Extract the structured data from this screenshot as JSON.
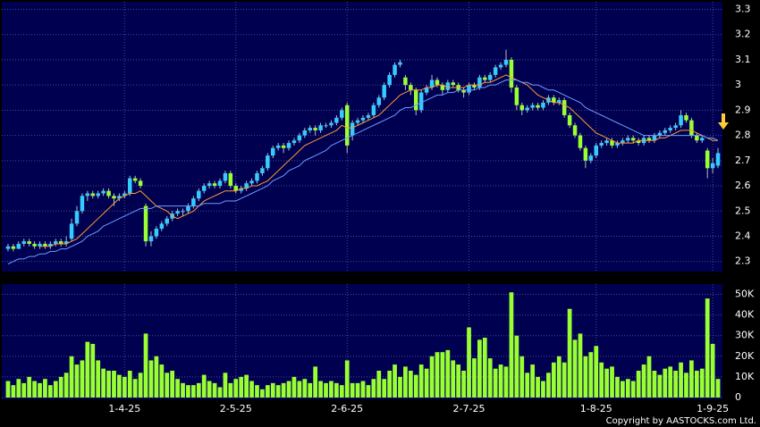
{
  "chart_data": {
    "type": "candlestick",
    "categories": [
      null,
      null,
      null,
      null,
      null,
      null,
      null,
      null,
      null,
      null,
      null,
      null,
      null,
      null,
      null,
      null,
      null,
      null,
      null,
      null,
      null,
      null,
      "1-4-25",
      null,
      null,
      null,
      null,
      null,
      null,
      null,
      null,
      null,
      null,
      null,
      null,
      null,
      null,
      null,
      null,
      null,
      null,
      null,
      null,
      "2-5-25",
      null,
      null,
      null,
      null,
      null,
      null,
      null,
      null,
      null,
      null,
      null,
      null,
      null,
      null,
      null,
      null,
      null,
      null,
      null,
      null,
      "2-6-25",
      null,
      null,
      null,
      null,
      null,
      null,
      null,
      null,
      null,
      null,
      null,
      null,
      null,
      null,
      null,
      null,
      null,
      null,
      null,
      null,
      null,
      null,
      "2-7-25",
      null,
      null,
      null,
      null,
      null,
      null,
      null,
      null,
      null,
      null,
      null,
      null,
      null,
      null,
      null,
      null,
      null,
      null,
      null,
      null,
      null,
      null,
      null,
      "1-8-25",
      null,
      null,
      null,
      null,
      null,
      null,
      null,
      null,
      null,
      null,
      null,
      null,
      null,
      null,
      null,
      null,
      null,
      null,
      null,
      null,
      null,
      "1-9-25",
      null
    ],
    "ohlc": [
      [
        2.35,
        2.37,
        2.34,
        2.36
      ],
      [
        2.36,
        2.37,
        2.34,
        2.35
      ],
      [
        2.35,
        2.38,
        2.35,
        2.37
      ],
      [
        2.37,
        2.39,
        2.36,
        2.38
      ],
      [
        2.38,
        2.39,
        2.36,
        2.37
      ],
      [
        2.37,
        2.38,
        2.35,
        2.36
      ],
      [
        2.36,
        2.38,
        2.35,
        2.37
      ],
      [
        2.37,
        2.38,
        2.35,
        2.36
      ],
      [
        2.36,
        2.38,
        2.35,
        2.37
      ],
      [
        2.37,
        2.39,
        2.36,
        2.38
      ],
      [
        2.38,
        2.39,
        2.36,
        2.37
      ],
      [
        2.37,
        2.4,
        2.36,
        2.38
      ],
      [
        2.39,
        2.47,
        2.38,
        2.45
      ],
      [
        2.45,
        2.52,
        2.44,
        2.5
      ],
      [
        2.5,
        2.57,
        2.49,
        2.56
      ],
      [
        2.56,
        2.58,
        2.54,
        2.57
      ],
      [
        2.57,
        2.58,
        2.55,
        2.56
      ],
      [
        2.56,
        2.58,
        2.55,
        2.57
      ],
      [
        2.57,
        2.59,
        2.56,
        2.58
      ],
      [
        2.58,
        2.59,
        2.55,
        2.56
      ],
      [
        2.56,
        2.57,
        2.52,
        2.55
      ],
      [
        2.55,
        2.57,
        2.54,
        2.56
      ],
      [
        2.56,
        2.58,
        2.55,
        2.57
      ],
      [
        2.57,
        2.64,
        2.56,
        2.63
      ],
      [
        2.63,
        2.64,
        2.61,
        2.62
      ],
      [
        2.62,
        2.63,
        2.59,
        2.6
      ],
      [
        2.52,
        2.53,
        2.36,
        2.38
      ],
      [
        2.38,
        2.42,
        2.36,
        2.4
      ],
      [
        2.4,
        2.44,
        2.39,
        2.43
      ],
      [
        2.43,
        2.46,
        2.42,
        2.45
      ],
      [
        2.45,
        2.48,
        2.44,
        2.47
      ],
      [
        2.47,
        2.5,
        2.46,
        2.49
      ],
      [
        2.49,
        2.51,
        2.48,
        2.5
      ],
      [
        2.5,
        2.51,
        2.48,
        2.5
      ],
      [
        2.5,
        2.53,
        2.49,
        2.52
      ],
      [
        2.52,
        2.56,
        2.51,
        2.55
      ],
      [
        2.55,
        2.59,
        2.54,
        2.58
      ],
      [
        2.58,
        2.61,
        2.57,
        2.6
      ],
      [
        2.6,
        2.62,
        2.59,
        2.61
      ],
      [
        2.61,
        2.62,
        2.59,
        2.6
      ],
      [
        2.6,
        2.63,
        2.59,
        2.62
      ],
      [
        2.62,
        2.66,
        2.61,
        2.65
      ],
      [
        2.65,
        2.66,
        2.59,
        2.6
      ],
      [
        2.6,
        2.61,
        2.57,
        2.58
      ],
      [
        2.58,
        2.6,
        2.57,
        2.59
      ],
      [
        2.59,
        2.62,
        2.58,
        2.61
      ],
      [
        2.61,
        2.63,
        2.6,
        2.62
      ],
      [
        2.62,
        2.66,
        2.61,
        2.65
      ],
      [
        2.65,
        2.68,
        2.64,
        2.67
      ],
      [
        2.67,
        2.73,
        2.66,
        2.72
      ],
      [
        2.72,
        2.76,
        2.71,
        2.75
      ],
      [
        2.75,
        2.77,
        2.74,
        2.76
      ],
      [
        2.76,
        2.77,
        2.73,
        2.75
      ],
      [
        2.75,
        2.78,
        2.74,
        2.77
      ],
      [
        2.77,
        2.79,
        2.76,
        2.78
      ],
      [
        2.78,
        2.81,
        2.77,
        2.8
      ],
      [
        2.8,
        2.83,
        2.79,
        2.82
      ],
      [
        2.82,
        2.84,
        2.81,
        2.83
      ],
      [
        2.83,
        2.84,
        2.8,
        2.82
      ],
      [
        2.82,
        2.85,
        2.81,
        2.84
      ],
      [
        2.84,
        2.85,
        2.83,
        2.84
      ],
      [
        2.84,
        2.86,
        2.83,
        2.85
      ],
      [
        2.85,
        2.88,
        2.84,
        2.87
      ],
      [
        2.87,
        2.91,
        2.86,
        2.9
      ],
      [
        2.92,
        2.93,
        2.73,
        2.76
      ],
      [
        2.8,
        2.86,
        2.78,
        2.85
      ],
      [
        2.85,
        2.87,
        2.84,
        2.86
      ],
      [
        2.86,
        2.88,
        2.85,
        2.87
      ],
      [
        2.87,
        2.89,
        2.86,
        2.88
      ],
      [
        2.88,
        2.93,
        2.87,
        2.92
      ],
      [
        2.92,
        2.96,
        2.91,
        2.95
      ],
      [
        2.95,
        3.01,
        2.94,
        3.0
      ],
      [
        3.0,
        3.05,
        2.99,
        3.04
      ],
      [
        3.04,
        3.09,
        3.03,
        3.08
      ],
      [
        3.08,
        3.1,
        3.07,
        3.09
      ],
      [
        3.03,
        3.04,
        2.98,
        3.0
      ],
      [
        3.0,
        3.01,
        2.96,
        2.98
      ],
      [
        2.98,
        2.99,
        2.88,
        2.9
      ],
      [
        2.9,
        2.98,
        2.89,
        2.97
      ],
      [
        2.97,
        3.0,
        2.96,
        2.99
      ],
      [
        2.99,
        3.04,
        2.98,
        3.02
      ],
      [
        3.02,
        3.03,
        2.99,
        3.0
      ],
      [
        3.0,
        3.01,
        2.96,
        2.98
      ],
      [
        2.98,
        3.02,
        2.97,
        3.01
      ],
      [
        3.01,
        3.02,
        2.99,
        3.0
      ],
      [
        3.0,
        3.01,
        2.97,
        2.98
      ],
      [
        2.98,
        2.99,
        2.95,
        2.97
      ],
      [
        2.97,
        3.01,
        2.96,
        3.0
      ],
      [
        3.0,
        3.01,
        2.98,
        2.99
      ],
      [
        2.99,
        3.04,
        2.98,
        3.03
      ],
      [
        3.03,
        3.04,
        3.01,
        3.02
      ],
      [
        3.02,
        3.05,
        3.01,
        3.04
      ],
      [
        3.04,
        3.08,
        3.03,
        3.07
      ],
      [
        3.07,
        3.09,
        3.06,
        3.08
      ],
      [
        3.08,
        3.14,
        3.07,
        3.1
      ],
      [
        3.1,
        3.11,
        2.97,
        2.99
      ],
      [
        2.99,
        3.0,
        2.9,
        2.92
      ],
      [
        2.92,
        2.93,
        2.88,
        2.9
      ],
      [
        2.9,
        2.92,
        2.89,
        2.91
      ],
      [
        2.91,
        2.93,
        2.9,
        2.92
      ],
      [
        2.92,
        2.93,
        2.9,
        2.91
      ],
      [
        2.91,
        2.94,
        2.9,
        2.93
      ],
      [
        2.93,
        2.96,
        2.92,
        2.95
      ],
      [
        2.95,
        2.96,
        2.92,
        2.93
      ],
      [
        2.93,
        2.95,
        2.92,
        2.94
      ],
      [
        2.94,
        2.95,
        2.87,
        2.88
      ],
      [
        2.88,
        2.89,
        2.83,
        2.84
      ],
      [
        2.84,
        2.85,
        2.79,
        2.8
      ],
      [
        2.8,
        2.81,
        2.74,
        2.75
      ],
      [
        2.75,
        2.76,
        2.67,
        2.7
      ],
      [
        2.7,
        2.73,
        2.69,
        2.72
      ],
      [
        2.72,
        2.77,
        2.71,
        2.76
      ],
      [
        2.76,
        2.78,
        2.75,
        2.77
      ],
      [
        2.77,
        2.79,
        2.76,
        2.78
      ],
      [
        2.78,
        2.79,
        2.75,
        2.76
      ],
      [
        2.76,
        2.78,
        2.75,
        2.77
      ],
      [
        2.77,
        2.79,
        2.76,
        2.78
      ],
      [
        2.78,
        2.8,
        2.77,
        2.79
      ],
      [
        2.79,
        2.8,
        2.77,
        2.78
      ],
      [
        2.78,
        2.79,
        2.76,
        2.77
      ],
      [
        2.77,
        2.8,
        2.76,
        2.79
      ],
      [
        2.79,
        2.8,
        2.77,
        2.78
      ],
      [
        2.78,
        2.81,
        2.77,
        2.8
      ],
      [
        2.8,
        2.82,
        2.79,
        2.81
      ],
      [
        2.81,
        2.83,
        2.8,
        2.82
      ],
      [
        2.82,
        2.84,
        2.81,
        2.83
      ],
      [
        2.83,
        2.85,
        2.82,
        2.84
      ],
      [
        2.84,
        2.9,
        2.83,
        2.88
      ],
      [
        2.88,
        2.89,
        2.85,
        2.86
      ],
      [
        2.86,
        2.87,
        2.79,
        2.8
      ],
      [
        2.8,
        2.81,
        2.77,
        2.78
      ],
      [
        2.78,
        2.8,
        2.77,
        2.79
      ],
      [
        2.74,
        2.75,
        2.63,
        2.67
      ],
      [
        2.67,
        2.71,
        2.65,
        2.69
      ],
      [
        2.68,
        2.75,
        2.67,
        2.73
      ]
    ],
    "up_color": "#33ccff",
    "down_color": "#99ff33",
    "series": [
      {
        "color": "#ff9933",
        "values": [
          null,
          null,
          null,
          null,
          null,
          null,
          2.36,
          2.36,
          2.36,
          2.37,
          2.37,
          2.37,
          2.38,
          2.39,
          2.41,
          2.43,
          2.45,
          2.47,
          2.49,
          2.51,
          2.53,
          2.55,
          2.56,
          2.57,
          2.57,
          2.58,
          2.56,
          2.54,
          2.52,
          2.51,
          2.5,
          2.48,
          2.47,
          2.48,
          2.49,
          2.5,
          2.52,
          2.54,
          2.55,
          2.56,
          2.57,
          2.58,
          2.58,
          2.58,
          2.59,
          2.59,
          2.6,
          2.6,
          2.61,
          2.62,
          2.64,
          2.66,
          2.68,
          2.7,
          2.72,
          2.74,
          2.76,
          2.77,
          2.78,
          2.79,
          2.8,
          2.81,
          2.82,
          2.84,
          2.83,
          2.83,
          2.84,
          2.85,
          2.86,
          2.87,
          2.88,
          2.9,
          2.92,
          2.94,
          2.96,
          2.97,
          2.98,
          2.98,
          2.98,
          2.99,
          2.99,
          3.0,
          3.0,
          2.99,
          2.99,
          2.99,
          2.99,
          3.0,
          3.0,
          3.0,
          3.01,
          3.01,
          3.02,
          3.03,
          3.04,
          3.03,
          3.02,
          3.01,
          3.0,
          2.98,
          2.96,
          2.95,
          2.94,
          2.93,
          2.93,
          2.92,
          2.91,
          2.89,
          2.87,
          2.85,
          2.83,
          2.81,
          2.8,
          2.79,
          2.78,
          2.77,
          2.77,
          2.77,
          2.77,
          2.78,
          2.78,
          2.78,
          2.78,
          2.79,
          2.79,
          2.8,
          2.81,
          2.82,
          2.82,
          2.82,
          2.81,
          2.8,
          2.79,
          2.78,
          2.78
        ]
      },
      {
        "color": "#6f9cff",
        "values": [
          2.29,
          2.3,
          2.31,
          2.31,
          2.32,
          2.32,
          2.33,
          2.33,
          2.34,
          2.34,
          2.35,
          2.35,
          2.36,
          2.37,
          2.38,
          2.4,
          2.41,
          2.42,
          2.44,
          2.45,
          2.46,
          2.47,
          2.48,
          2.49,
          2.5,
          2.51,
          2.51,
          2.51,
          2.52,
          2.52,
          2.52,
          2.52,
          2.52,
          2.52,
          2.52,
          2.52,
          2.52,
          2.53,
          2.53,
          2.53,
          2.53,
          2.54,
          2.54,
          2.54,
          2.55,
          2.56,
          2.57,
          2.58,
          2.59,
          2.6,
          2.62,
          2.63,
          2.64,
          2.66,
          2.67,
          2.68,
          2.7,
          2.71,
          2.72,
          2.73,
          2.74,
          2.76,
          2.77,
          2.78,
          2.79,
          2.8,
          2.81,
          2.82,
          2.83,
          2.84,
          2.85,
          2.86,
          2.87,
          2.88,
          2.9,
          2.91,
          2.91,
          2.92,
          2.93,
          2.94,
          2.95,
          2.96,
          2.96,
          2.97,
          2.97,
          2.98,
          2.98,
          2.98,
          2.98,
          2.99,
          2.99,
          3.0,
          3.0,
          3.01,
          3.02,
          3.02,
          3.02,
          3.01,
          3.01,
          3.0,
          3.0,
          2.99,
          2.98,
          2.98,
          2.97,
          2.96,
          2.95,
          2.94,
          2.93,
          2.91,
          2.9,
          2.89,
          2.88,
          2.87,
          2.86,
          2.85,
          2.84,
          2.83,
          2.82,
          2.81,
          2.8,
          2.8,
          2.8,
          2.8,
          2.8,
          2.8,
          2.8,
          2.8,
          2.8,
          2.8,
          2.8,
          2.8,
          2.79,
          2.79,
          2.78
        ]
      }
    ],
    "ylim": [
      2.26,
      3.33
    ],
    "yticks": [
      2.3,
      2.4,
      2.5,
      2.6,
      2.7,
      2.8,
      2.9,
      3,
      3.1,
      3.2,
      3.3
    ],
    "volume": {
      "color": "#99ff33",
      "ylim": [
        0,
        55000
      ],
      "yticks": [
        0,
        {
          "value": 10000,
          "label": "10K"
        },
        {
          "value": 20000,
          "label": "20K"
        },
        {
          "value": 30000,
          "label": "30K"
        },
        {
          "value": 40000,
          "label": "40K"
        },
        {
          "value": 50000,
          "label": "50K"
        }
      ],
      "values": [
        8000,
        6000,
        9000,
        7000,
        10000,
        8000,
        7000,
        9000,
        6000,
        8000,
        10000,
        12000,
        20000,
        16000,
        18000,
        27000,
        26000,
        18000,
        14000,
        13000,
        13000,
        11000,
        10000,
        13000,
        9000,
        12000,
        31000,
        18000,
        20000,
        16000,
        12000,
        13000,
        9000,
        7000,
        6000,
        6000,
        7000,
        11000,
        8000,
        7000,
        5000,
        12000,
        7000,
        9000,
        10000,
        11000,
        8000,
        6000,
        4000,
        6000,
        7000,
        6000,
        7000,
        8000,
        10000,
        8000,
        9000,
        7000,
        15000,
        8000,
        7000,
        8000,
        7000,
        6000,
        18000,
        7000,
        7000,
        8000,
        6000,
        9000,
        13000,
        9000,
        13000,
        16000,
        10000,
        15000,
        13000,
        11000,
        16000,
        14000,
        20000,
        22000,
        22000,
        23000,
        18000,
        16000,
        13000,
        34000,
        19000,
        28000,
        29000,
        19000,
        14000,
        16000,
        15000,
        51000,
        30000,
        20000,
        12000,
        16000,
        10000,
        8000,
        12000,
        17000,
        20000,
        17000,
        43000,
        28000,
        31000,
        20000,
        22000,
        25000,
        17000,
        14000,
        15000,
        10000,
        8000,
        9000,
        8000,
        13000,
        16000,
        20000,
        13000,
        11000,
        14000,
        15000,
        13000,
        17000,
        12000,
        18000,
        13000,
        14000,
        48000,
        26000,
        9000
      ]
    },
    "copyright": "Copyright by AASTOCKS.com Ltd."
  }
}
